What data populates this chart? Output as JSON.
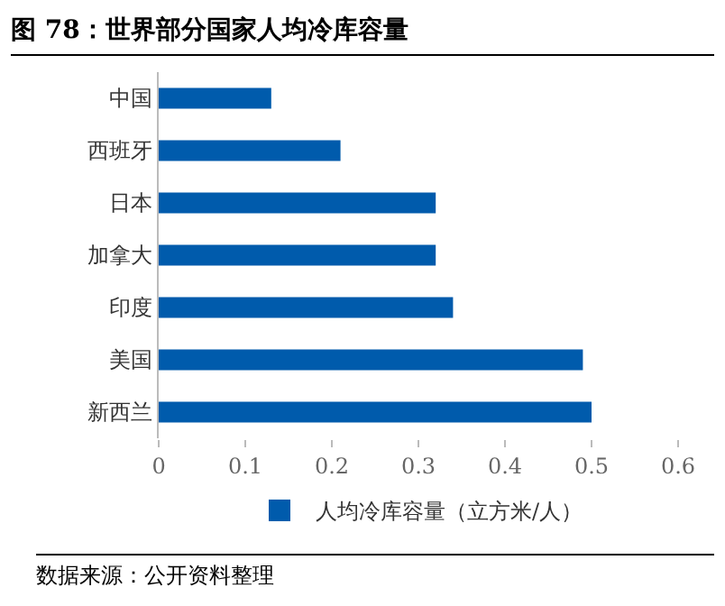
{
  "chart_data": {
    "type": "bar",
    "orientation": "horizontal",
    "title": "图 78：世界部分国家人均冷库容量",
    "categories": [
      "中国",
      "西班牙",
      "日本",
      "加拿大",
      "印度",
      "美国",
      "新西兰"
    ],
    "series": [
      {
        "name": "人均冷库容量（立方米/人）",
        "color": "#005bac",
        "values": [
          0.13,
          0.21,
          0.32,
          0.32,
          0.34,
          0.49,
          0.5
        ]
      }
    ],
    "xlim": [
      0,
      0.6
    ],
    "xticks": [
      0,
      0.1,
      0.2,
      0.3,
      0.4,
      0.5,
      0.6
    ],
    "grid": false,
    "legend": "bottom",
    "annotations": [
      "数据来源：公开资料整理"
    ]
  }
}
